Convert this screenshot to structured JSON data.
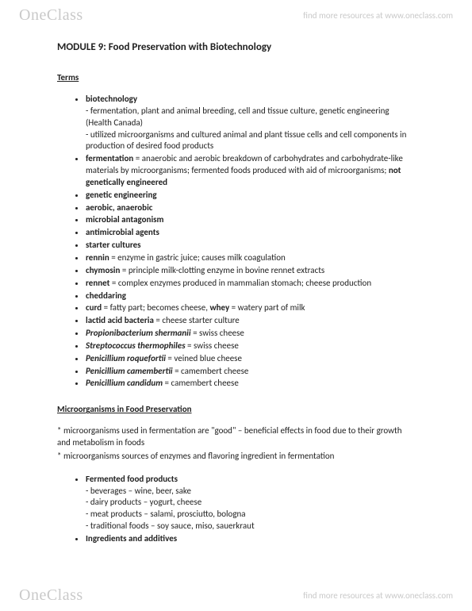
{
  "watermark": {
    "logo_one": "One",
    "logo_class": "Class",
    "url_text": "find more resources at www.oneclass.com"
  },
  "title": "MODULE 9: Food Preservation with Biotechnology",
  "terms_heading": "Terms",
  "terms": {
    "biotech_label": "biotechnology",
    "biotech_sub1": "- fermentation, plant and animal breeding, cell and tissue culture, genetic engineering (Health Canada)",
    "biotech_sub2": "- utilized microorganisms and cultured animal and plant tissue cells and cell components in production of desired food products",
    "fermentation_label": "fermentation",
    "fermentation_rest": " = anaerobic and aerobic breakdown of carbohydrates and carbohydrate-like materials by microorganisms; fermented foods produced with aid of microorganisms; ",
    "fermentation_bold2": "not genetically engineered",
    "genetic_eng": "genetic engineering",
    "aerobic": "aerobic, anaerobic",
    "microbial_antag": "microbial antagonism",
    "antimicrobial": "antimicrobial agents",
    "starter": "starter cultures",
    "rennin_label": "rennin",
    "rennin_rest": " = enzyme in gastric juice; causes milk coagulation",
    "chymosin_label": "chymosin",
    "chymosin_rest": " = principle milk-clotting enzyme in bovine rennet extracts",
    "rennet_label": "rennet",
    "rennet_rest": " = complex enzymes produced in mammalian stomach; cheese production",
    "cheddaring": "cheddaring",
    "curd_label": "curd",
    "curd_mid": " = fatty part; becomes cheese, ",
    "whey_label": "whey",
    "whey_rest": " = watery part of milk",
    "lactic_label": "lactid acid bacteria",
    "lactic_rest": " = cheese starter culture",
    "prop_label": "Propionibacterium shermanii",
    "prop_rest": " = swiss cheese",
    "strep_label": "Streptococcus thermophiles",
    "strep_rest": " = swiss cheese",
    "roquefortii_label": "Penicillium roquefortii",
    "roquefortii_rest": " = veined blue cheese",
    "camembertii_label": "Penicillium camembertii",
    "camembertii_rest": " = camembert cheese",
    "candidum_label": "Penicillium candidum",
    "candidum_rest": " = camembert cheese"
  },
  "micro_heading": "Microorganisms in Food Preservation",
  "para1": "* microorganisms used in fermentation are \"good\" – beneficial effects in food due to their growth and metabolism in foods",
  "para2": "* microorganisms sources of enzymes and flavoring ingredient in fermentation",
  "products": {
    "heading": "Fermented food products",
    "sub1": "- beverages – wine, beer, sake",
    "sub2": "- dairy products – yogurt, cheese",
    "sub3": "- meat products – salami, prosciutto, bologna",
    "sub4": "- traditional foods – soy sauce, miso, sauerkraut",
    "ingredients": "Ingredients and additives"
  }
}
